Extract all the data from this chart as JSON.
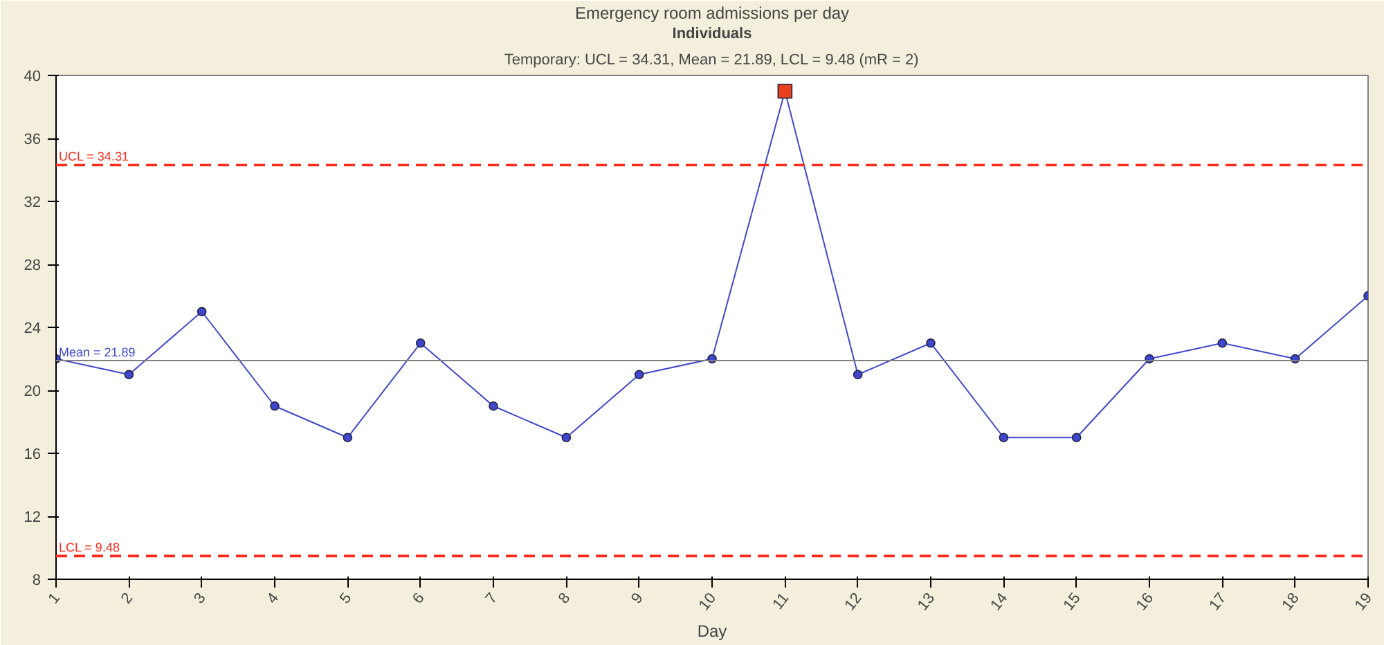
{
  "chart_data": {
    "type": "line",
    "title": "Emergency room admissions per day",
    "subtitle": "Individuals",
    "annotations": [
      "Temporary: UCL = 34.31, Mean = 21.89, LCL = 9.48 (mR = 2)"
    ],
    "xlabel": "Day",
    "x": [
      1,
      2,
      3,
      4,
      5,
      6,
      7,
      8,
      9,
      10,
      11,
      12,
      13,
      14,
      15,
      16,
      17,
      18,
      19
    ],
    "series": [
      {
        "color": "#3f48cc",
        "marker": "circle",
        "values": [
          22,
          21,
          25,
          19,
          17,
          23,
          19,
          17,
          21,
          22,
          39,
          21,
          23,
          17,
          17,
          22,
          23,
          22,
          26
        ]
      },
      {
        "type": "scatter",
        "color": "#e8401c",
        "marker": "square",
        "x": [
          11
        ],
        "values": [
          39
        ]
      }
    ],
    "xlim": [
      1,
      19
    ],
    "xticks": [
      1,
      2,
      3,
      4,
      5,
      6,
      7,
      8,
      9,
      10,
      11,
      12,
      13,
      14,
      15,
      16,
      17,
      18,
      19
    ],
    "ylim": [
      8,
      40
    ],
    "yticks": [
      8,
      12,
      16,
      20,
      24,
      28,
      32,
      36,
      40
    ],
    "grid": false,
    "ref_lines": [
      {
        "axis": "y",
        "value": 34.31,
        "label": "UCL = 34.31",
        "color": "#ff2a1a",
        "line_style": "dashed"
      },
      {
        "axis": "y",
        "value": 21.89,
        "label": "Mean = 21.89",
        "color": "#808080",
        "line_style": "solid"
      },
      {
        "axis": "y",
        "value": 9.48,
        "label": "LCL = 9.48",
        "color": "#ff2a1a",
        "line_style": "dashed"
      }
    ]
  }
}
